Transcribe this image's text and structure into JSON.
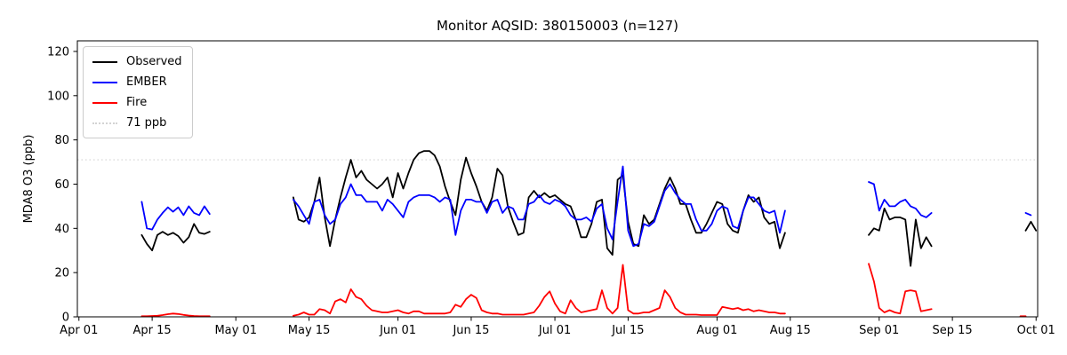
{
  "chart_data": {
    "type": "line",
    "title": "Monitor AQSID: 380150003 (n=127)",
    "xlabel": "",
    "ylabel": "MDA8 O3 (ppb)",
    "ylim": [
      0,
      124.8
    ],
    "xlim_days": [
      -0.3,
      183.3
    ],
    "x_origin_date": "Apr 01",
    "grid": false,
    "y_ticks": [
      0,
      20,
      40,
      60,
      80,
      100,
      120
    ],
    "x_ticks": [
      {
        "day": 0,
        "label": "Apr 01"
      },
      {
        "day": 14,
        "label": "Apr 15"
      },
      {
        "day": 30,
        "label": "May 01"
      },
      {
        "day": 44,
        "label": "May 15"
      },
      {
        "day": 61,
        "label": "Jun 01"
      },
      {
        "day": 75,
        "label": "Jun 15"
      },
      {
        "day": 91,
        "label": "Jul 01"
      },
      {
        "day": 105,
        "label": "Jul 15"
      },
      {
        "day": 122,
        "label": "Aug 01"
      },
      {
        "day": 136,
        "label": "Aug 15"
      },
      {
        "day": 153,
        "label": "Sep 01"
      },
      {
        "day": 167,
        "label": "Sep 15"
      },
      {
        "day": 183,
        "label": "Oct 01"
      }
    ],
    "threshold": {
      "value": 71,
      "label": "71 ppb",
      "color": "#d3d3d3",
      "style": "dotted"
    },
    "legend": {
      "position": "upper-left",
      "entries": [
        {
          "label": "Observed",
          "color": "#000000",
          "style": "solid"
        },
        {
          "label": "EMBER",
          "color": "#0000ff",
          "style": "solid"
        },
        {
          "label": "Fire",
          "color": "#ff0000",
          "style": "solid"
        },
        {
          "label": "71 ppb",
          "color": "#d3d3d3",
          "style": "dotted"
        }
      ]
    },
    "series": [
      {
        "name": "Observed",
        "color": "#000000",
        "segments": [
          {
            "start_day": 12,
            "values": [
              37,
              33,
              30,
              37,
              38.5,
              37,
              38,
              36.5,
              33.5,
              36,
              42,
              38,
              37.5,
              38.5
            ]
          },
          {
            "start_day": 41,
            "values": [
              54,
              44,
              43,
              45,
              52,
              63,
              45,
              32,
              44,
              54,
              63,
              71,
              63,
              66,
              62,
              60,
              58,
              60,
              63,
              54,
              65,
              58,
              65,
              71,
              74,
              75,
              75,
              73,
              68,
              59,
              52,
              46,
              62,
              72,
              65,
              59,
              52,
              48,
              54,
              67,
              64,
              50,
              43,
              37,
              38,
              54,
              57,
              54,
              56,
              54,
              55,
              53,
              51,
              50,
              44,
              36,
              36,
              42,
              52,
              53,
              31,
              28,
              62,
              64,
              43,
              33,
              32,
              46,
              42,
              44,
              51,
              58,
              63,
              58,
              51,
              51,
              44,
              38,
              38,
              42,
              47,
              52,
              51,
              42,
              39,
              38,
              48,
              55,
              52,
              54,
              45,
              42,
              43,
              31,
              38
            ]
          },
          {
            "start_day": 151,
            "values": [
              37,
              40,
              39,
              49,
              44,
              45,
              45,
              44,
              23,
              44,
              31,
              36,
              32
            ]
          },
          {
            "start_day": 181,
            "values": [
              39,
              43,
              39
            ]
          }
        ]
      },
      {
        "name": "EMBER",
        "color": "#0000ff",
        "segments": [
          {
            "start_day": 12,
            "values": [
              52,
              40,
              39.5,
              44,
              47,
              49.5,
              47.5,
              49.5,
              46,
              50,
              47,
              46,
              50,
              46.5
            ]
          },
          {
            "start_day": 41,
            "values": [
              53,
              50,
              46,
              42,
              52,
              53,
              46,
              42,
              44,
              51,
              54,
              60,
              55,
              55,
              52,
              52,
              52,
              48,
              53,
              51,
              48,
              45,
              52,
              54,
              55,
              55,
              55,
              54,
              52,
              54,
              53,
              37,
              48,
              53,
              53,
              52,
              52,
              47,
              52,
              53,
              47,
              50,
              49,
              44,
              44,
              51,
              52,
              55,
              52,
              51,
              53,
              52,
              50,
              46,
              44,
              44,
              45,
              43,
              49,
              51,
              40,
              35,
              52,
              68,
              39,
              32,
              33,
              42,
              41,
              43,
              50,
              57,
              60,
              56,
              53,
              51,
              51,
              44,
              39,
              39,
              42,
              48,
              50,
              49,
              41,
              40,
              48,
              54,
              54,
              51,
              48,
              47,
              48,
              38,
              48
            ]
          },
          {
            "start_day": 151,
            "values": [
              61,
              60,
              48,
              53,
              50,
              50,
              52,
              53,
              50,
              49,
              46,
              45,
              47
            ]
          },
          {
            "start_day": 181,
            "values": [
              47,
              46
            ]
          }
        ]
      },
      {
        "name": "Fire",
        "color": "#ff0000",
        "segments": [
          {
            "start_day": 12,
            "values": [
              0.3,
              0.3,
              0.4,
              0.5,
              0.8,
              1.2,
              1.5,
              1.3,
              0.9,
              0.6,
              0.4,
              0.3,
              0.3,
              0.3
            ]
          },
          {
            "start_day": 41,
            "values": [
              0.5,
              1,
              2,
              1,
              1,
              3.5,
              3,
              1.5,
              7,
              8,
              6.5,
              12.5,
              9,
              8,
              5,
              3,
              2.5,
              2,
              2,
              2.5,
              3,
              2,
              1.5,
              2.5,
              2.5,
              1.5,
              1.5,
              1.5,
              1.5,
              1.5,
              2,
              5.5,
              4.5,
              8,
              10,
              8.5,
              3,
              2,
              1.5,
              1.5,
              1,
              1,
              1,
              1,
              1,
              1.5,
              2,
              5,
              9,
              11.5,
              6,
              2.5,
              1.5,
              7.5,
              4,
              2,
              2.5,
              3,
              3.5,
              12,
              4,
              1.5,
              4,
              23.5,
              3,
              1.5,
              1.5,
              2,
              2,
              3,
              4,
              12,
              9,
              4,
              2,
              1,
              1,
              1,
              0.8,
              0.8,
              0.8,
              0.8,
              4.5,
              4,
              3.5,
              4,
              3,
              3.5,
              2.5,
              3,
              2.5,
              2,
              2,
              1.5,
              1.5
            ]
          },
          {
            "start_day": 151,
            "values": [
              24,
              16,
              4,
              2,
              3,
              2,
              1.5,
              11.5,
              12,
              11.5,
              2.5,
              3,
              3.5
            ]
          },
          {
            "start_day": 180,
            "values": [
              0.3,
              0.3
            ]
          }
        ]
      }
    ]
  }
}
